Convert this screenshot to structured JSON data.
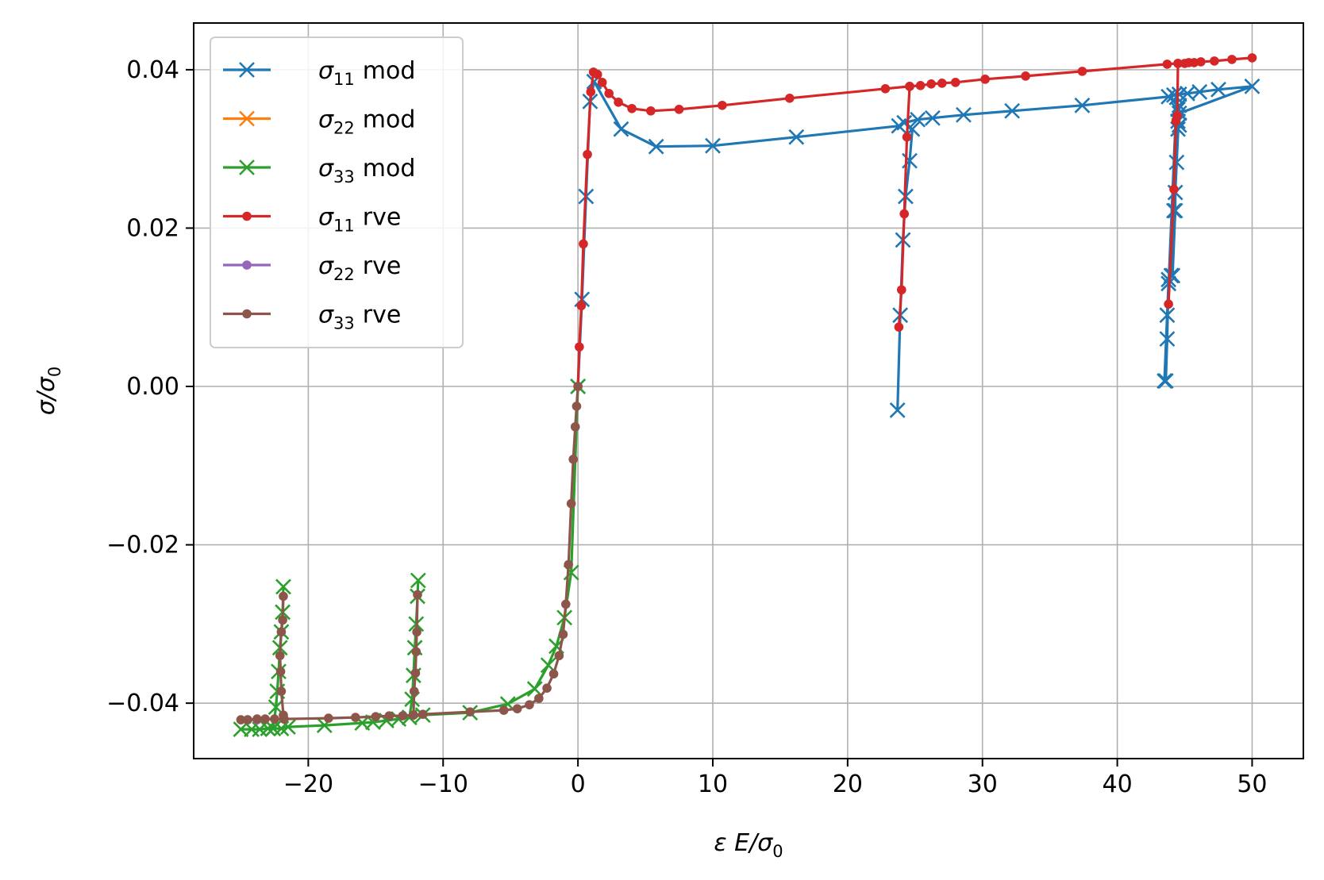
{
  "chart_data": {
    "type": "line",
    "title": "",
    "xlabel": "ε E/σ0",
    "ylabel": "σ/σ0",
    "xlim": [
      -28.5,
      53.8
    ],
    "ylim": [
      -0.047,
      0.0459
    ],
    "x_ticks": [
      -20,
      -10,
      0,
      10,
      20,
      30,
      40,
      50
    ],
    "x_tick_labels": [
      "−20",
      "−10",
      "0",
      "10",
      "20",
      "30",
      "40",
      "50"
    ],
    "y_ticks": [
      -0.04,
      -0.02,
      0.0,
      0.02,
      0.04
    ],
    "y_tick_labels": [
      "−0.04",
      "−0.02",
      "0.00",
      "0.02",
      "0.04"
    ],
    "grid": true,
    "legend_position": "top-left",
    "legend": [
      {
        "sym": "σ",
        "sub": "11",
        "suffix": "mod",
        "color": "#1f77b4",
        "marker": "x"
      },
      {
        "sym": "σ",
        "sub": "22",
        "suffix": "mod",
        "color": "#ff7f0e",
        "marker": "x"
      },
      {
        "sym": "σ",
        "sub": "33",
        "suffix": "mod",
        "color": "#2ca02c",
        "marker": "x"
      },
      {
        "sym": "σ",
        "sub": "11",
        "suffix": "rve",
        "color": "#d62728",
        "marker": "dot"
      },
      {
        "sym": "σ",
        "sub": "22",
        "suffix": "rve",
        "color": "#9467bd",
        "marker": "dot"
      },
      {
        "sym": "σ",
        "sub": "33",
        "suffix": "rve",
        "color": "#8c564b",
        "marker": "dot"
      }
    ],
    "series": [
      {
        "name": "σ11 mod",
        "color": "#1f77b4",
        "marker": "x",
        "x": [
          0,
          0.3,
          0.6,
          0.9,
          1.2,
          3.2,
          5.8,
          10.0,
          16.2,
          23.8,
          24.2,
          25.2,
          26.3,
          28.6,
          32.2,
          37.4,
          43.8,
          44.2,
          44.6,
          45.2,
          46.1,
          47.5,
          50.0,
          44.6,
          44.5,
          44.4,
          44.2,
          44.0,
          43.8,
          43.7,
          43.5,
          44.4,
          44.5,
          44.5,
          44.6,
          44.6,
          44.3,
          44.3,
          44.1,
          43.8,
          43.7,
          43.6
        ],
        "y": [
          0,
          0.011,
          0.024,
          0.036,
          0.0385,
          0.0325,
          0.0303,
          0.0304,
          0.0315,
          0.0329,
          0.0333,
          0.0337,
          0.0339,
          0.0343,
          0.0348,
          0.0355,
          0.0366,
          0.0368,
          0.0369,
          0.037,
          0.0372,
          0.0375,
          0.0379,
          0.0345,
          0.0325,
          0.0283,
          0.0222,
          0.014,
          0.013,
          0.009,
          0.0007,
          0.0365,
          0.035,
          0.0335,
          0.033,
          0.0355,
          0.0245,
          0.0222,
          0.014,
          0.0135,
          0.006,
          0.0007
        ]
      },
      {
        "name": "σ11 mod 2",
        "color": "#1f77b4",
        "marker": "x",
        "x": [
          24.8,
          24.6,
          24.3,
          24.1,
          23.9,
          23.7
        ],
        "y": [
          0.0325,
          0.0285,
          0.024,
          0.0185,
          0.009,
          -0.003
        ]
      },
      {
        "name": "σ22 mod",
        "color": "#ff7f0e",
        "marker": "x",
        "x": [],
        "y": []
      },
      {
        "name": "σ33 mod",
        "color": "#2ca02c",
        "marker": "x",
        "x": [
          0,
          -0.5,
          -1.0,
          -1.6,
          -2.2,
          -3.2,
          -5.2,
          -8.0,
          -11.5,
          -12.5,
          -13.3,
          -14.2,
          -15.2,
          -16.0,
          -18.8,
          -21.5,
          -22.0,
          -22.6,
          -23.0,
          -23.6,
          -24.2,
          -25.0
        ],
        "y": [
          0,
          -0.0235,
          -0.0292,
          -0.0328,
          -0.0352,
          -0.0382,
          -0.0401,
          -0.0412,
          -0.0415,
          -0.0418,
          -0.042,
          -0.0422,
          -0.0424,
          -0.0425,
          -0.0428,
          -0.043,
          -0.0432,
          -0.0432,
          -0.0432,
          -0.0433,
          -0.0433,
          -0.0433
        ]
      },
      {
        "name": "σ33 mod 2",
        "color": "#2ca02c",
        "marker": "x",
        "x": [
          -12.5,
          -12.3,
          -12.2,
          -12.1,
          -12.0,
          -11.9,
          -11.85
        ],
        "y": [
          -0.0418,
          -0.0395,
          -0.0365,
          -0.033,
          -0.03,
          -0.0265,
          -0.0245
        ]
      },
      {
        "name": "σ33 mod 3",
        "color": "#2ca02c",
        "marker": "x",
        "x": [
          -22.6,
          -22.4,
          -22.3,
          -22.2,
          -22.1,
          -22.0,
          -21.9,
          -21.85
        ],
        "y": [
          -0.0432,
          -0.0405,
          -0.0385,
          -0.036,
          -0.033,
          -0.031,
          -0.0285,
          -0.0253
        ]
      },
      {
        "name": "σ11 rve",
        "color": "#d62728",
        "marker": "dot",
        "x": [
          0,
          0.1,
          0.25,
          0.4,
          0.7,
          0.95,
          1.15,
          1.45,
          1.8,
          2.3,
          3.0,
          4.0,
          5.4,
          7.5,
          10.7,
          15.7,
          22.8,
          24.6,
          25.4,
          26.2,
          27.0,
          28.0,
          30.2,
          33.2,
          37.4,
          43.7,
          44.5,
          45.0,
          45.3,
          45.7,
          46.2,
          47.2,
          48.5,
          50.0
        ],
        "y": [
          0,
          0.005,
          0.0102,
          0.018,
          0.0293,
          0.0372,
          0.0397,
          0.0394,
          0.0384,
          0.037,
          0.0359,
          0.0351,
          0.0348,
          0.035,
          0.0355,
          0.0364,
          0.0376,
          0.0379,
          0.038,
          0.0382,
          0.0383,
          0.0384,
          0.0388,
          0.0392,
          0.0398,
          0.0407,
          0.0408,
          0.0408,
          0.0409,
          0.0409,
          0.041,
          0.0411,
          0.0413,
          0.0415
        ]
      },
      {
        "name": "σ11 rve 2",
        "color": "#d62728",
        "marker": "dot",
        "x": [
          24.6,
          24.4,
          24.2,
          24.0,
          23.8
        ],
        "y": [
          0.0379,
          0.0315,
          0.0218,
          0.0122,
          0.0075
        ]
      },
      {
        "name": "σ11 rve 3",
        "color": "#d62728",
        "marker": "dot",
        "x": [
          44.5,
          44.45,
          44.35,
          44.2,
          43.8
        ],
        "y": [
          0.0408,
          0.0342,
          0.0335,
          0.0249,
          0.0104
        ]
      },
      {
        "name": "σ22 rve",
        "color": "#9467bd",
        "marker": "dot",
        "x": [
          -24.5,
          -23.8
        ],
        "y": [
          -0.0421,
          -0.0421
        ]
      },
      {
        "name": "σ33 rve",
        "color": "#8c564b",
        "marker": "dot",
        "x": [
          0,
          -0.1,
          -0.2,
          -0.35,
          -0.5,
          -0.7,
          -0.9,
          -1.1,
          -1.4,
          -1.8,
          -2.3,
          -2.9,
          -3.6,
          -4.5,
          -5.5,
          -8.0,
          -11.5,
          -12.2,
          -13.0,
          -14.0,
          -15.0,
          -16.5,
          -18.5,
          -21.8,
          -22.5,
          -23.2,
          -23.8,
          -24.5,
          -25.0
        ],
        "y": [
          0,
          -0.0025,
          -0.0051,
          -0.0092,
          -0.0148,
          -0.0225,
          -0.0275,
          -0.0313,
          -0.034,
          -0.0363,
          -0.0381,
          -0.0394,
          -0.0402,
          -0.0407,
          -0.0409,
          -0.0411,
          -0.0414,
          -0.0415,
          -0.0416,
          -0.0416,
          -0.0417,
          -0.0418,
          -0.0419,
          -0.042,
          -0.042,
          -0.042,
          -0.042,
          -0.0421,
          -0.0421
        ]
      },
      {
        "name": "σ33 rve 2",
        "color": "#8c564b",
        "marker": "dot",
        "x": [
          -12.2,
          -12.15,
          -12.05,
          -12.0,
          -11.95,
          -11.9
        ],
        "y": [
          -0.0415,
          -0.0385,
          -0.0362,
          -0.0335,
          -0.031,
          -0.0263
        ]
      },
      {
        "name": "σ33 rve 3",
        "color": "#8c564b",
        "marker": "dot",
        "x": [
          -21.8,
          -21.85,
          -22.0,
          -22.05,
          -22.1,
          -22.0,
          -21.9,
          -21.85
        ],
        "y": [
          -0.042,
          -0.0415,
          -0.0385,
          -0.036,
          -0.034,
          -0.031,
          -0.0295,
          -0.0265
        ]
      }
    ]
  }
}
